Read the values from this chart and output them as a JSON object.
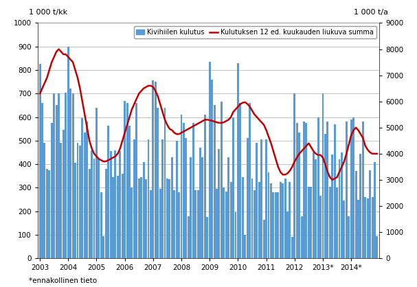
{
  "ylabel_left": "1 000 t/kk",
  "ylabel_right": "1 000 t/a",
  "ylim_left": [
    0,
    1000
  ],
  "ylim_right": [
    0,
    9000
  ],
  "yticks_left": [
    0,
    100,
    200,
    300,
    400,
    500,
    600,
    700,
    800,
    900,
    1000
  ],
  "yticks_right": [
    0,
    1000,
    2000,
    3000,
    4000,
    5000,
    6000,
    7000,
    8000,
    9000
  ],
  "xlabel_note": "*ennakollinen tieto",
  "bar_color_hex": "#5B9BD5",
  "line_color_hex": "#C00000",
  "legend_bar": "Kivihiilen kulutus",
  "legend_line": "Kulutuksen 12 ed. kuukauden liukuva summa",
  "bg_color": "#FFFFFF",
  "grid_color": "#AAAAAA",
  "year_labels": [
    "2003",
    "2004",
    "2005",
    "2006",
    "2007",
    "2008",
    "2009",
    "2010",
    "2011",
    "2012",
    "2013*",
    "2014*"
  ],
  "n_months": 144,
  "bar_values": [
    825,
    660,
    490,
    380,
    375,
    575,
    700,
    650,
    700,
    490,
    545,
    705,
    900,
    720,
    700,
    405,
    490,
    480,
    595,
    535,
    580,
    380,
    460,
    425,
    640,
    425,
    280,
    95,
    380,
    565,
    455,
    345,
    460,
    350,
    455,
    360,
    670,
    660,
    565,
    300,
    505,
    660,
    340,
    345,
    410,
    335,
    505,
    290,
    755,
    750,
    640,
    295,
    505,
    640,
    340,
    335,
    430,
    290,
    500,
    280,
    610,
    575,
    510,
    180,
    430,
    575,
    290,
    290,
    470,
    430,
    610,
    175,
    835,
    760,
    650,
    295,
    465,
    665,
    300,
    285,
    430,
    325,
    600,
    195,
    830,
    660,
    345,
    100,
    510,
    660,
    340,
    290,
    490,
    325,
    505,
    165,
    505,
    365,
    320,
    280,
    280,
    280,
    325,
    320,
    340,
    200,
    325,
    90,
    700,
    575,
    535,
    180,
    580,
    575,
    305,
    305,
    450,
    420,
    600,
    265,
    700,
    530,
    580,
    305,
    440,
    570,
    300,
    420,
    450,
    245,
    580,
    180,
    590,
    600,
    370,
    250,
    445,
    580,
    260,
    255,
    375,
    260,
    410,
    95
  ],
  "line_values_right": [
    6300,
    6500,
    6700,
    6900,
    7200,
    7500,
    7700,
    7900,
    8000,
    7900,
    7800,
    7800,
    7700,
    7600,
    7500,
    7200,
    6900,
    6500,
    6000,
    5500,
    5000,
    4500,
    4200,
    4000,
    3900,
    3800,
    3750,
    3700,
    3710,
    3750,
    3800,
    3850,
    3900,
    4000,
    4200,
    4500,
    4800,
    5100,
    5400,
    5700,
    5900,
    6100,
    6300,
    6400,
    6500,
    6550,
    6600,
    6600,
    6550,
    6400,
    6200,
    5900,
    5600,
    5300,
    5100,
    4950,
    4900,
    4800,
    4750,
    4750,
    4800,
    4850,
    4900,
    4950,
    5000,
    5050,
    5100,
    5150,
    5200,
    5250,
    5300,
    5300,
    5280,
    5260,
    5230,
    5200,
    5180,
    5180,
    5200,
    5250,
    5300,
    5400,
    5600,
    5700,
    5800,
    5900,
    5950,
    5970,
    5900,
    5800,
    5650,
    5500,
    5400,
    5300,
    5200,
    5100,
    4900,
    4650,
    4400,
    4100,
    3800,
    3500,
    3300,
    3200,
    3200,
    3250,
    3350,
    3500,
    3700,
    3850,
    4000,
    4100,
    4200,
    4300,
    4400,
    4250,
    4100,
    4000,
    3950,
    3950,
    3850,
    3600,
    3300,
    3100,
    3000,
    3050,
    3100,
    3300,
    3500,
    3700,
    4000,
    4350,
    4700,
    4900,
    5000,
    4900,
    4750,
    4600,
    4300,
    4150,
    4050,
    4000,
    4000,
    4000
  ]
}
